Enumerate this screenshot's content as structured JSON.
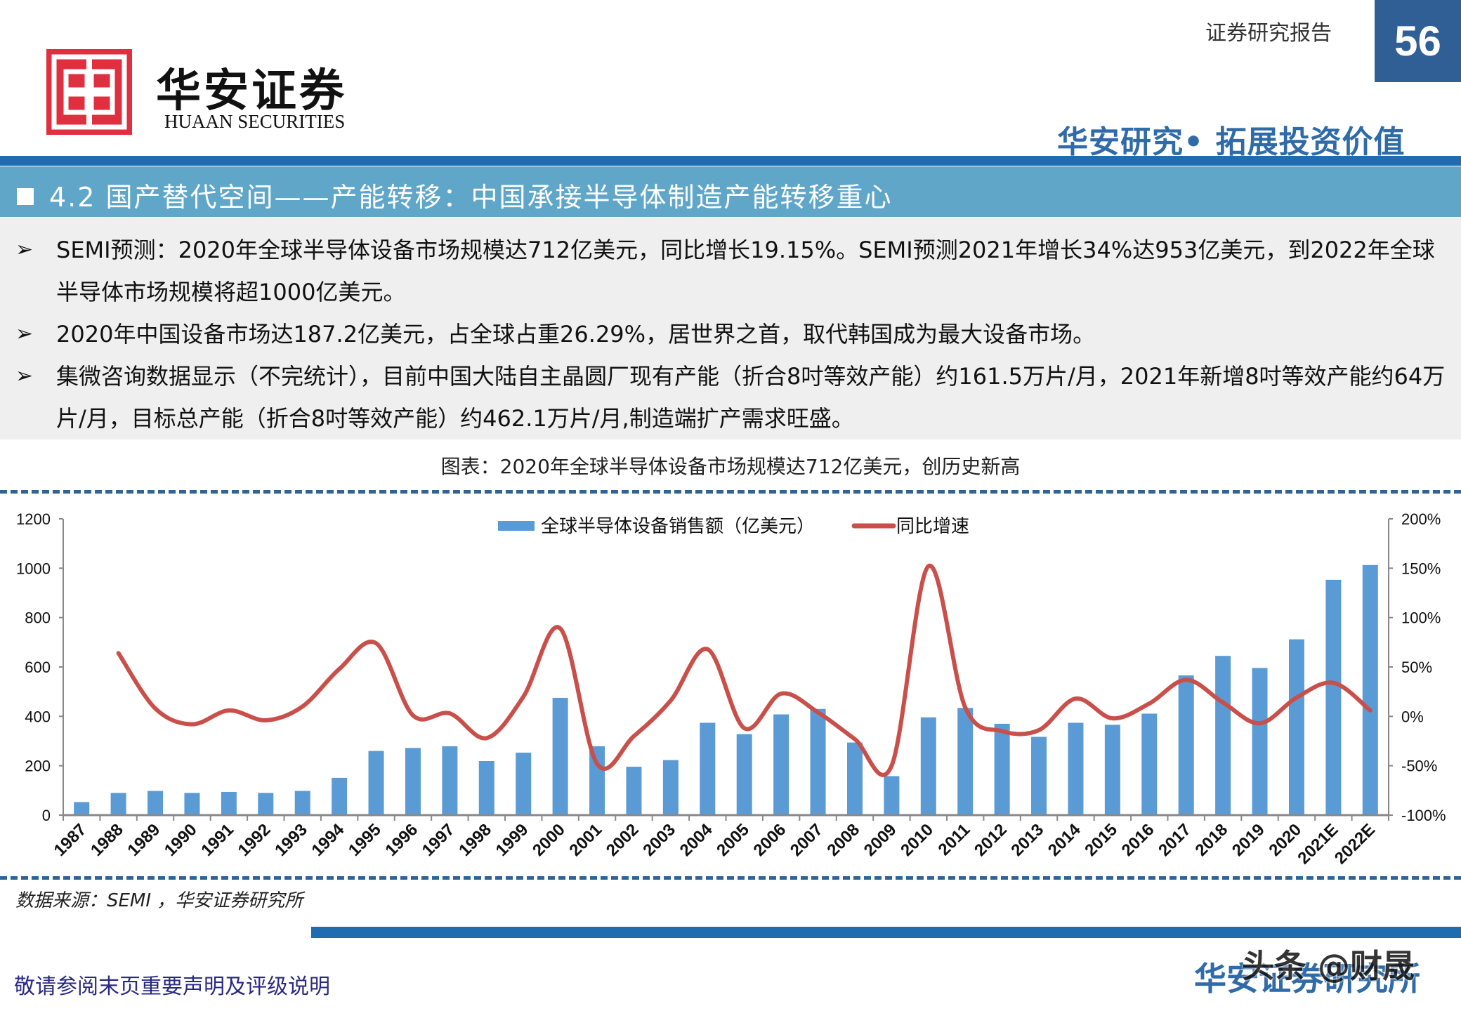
{
  "header": {
    "logo_cn": "华安证券",
    "logo_en": "HUAAN SECURITIES",
    "report_type": "证券研究报告",
    "page_number": "56",
    "slogan": "华安研究• 拓展投资价值"
  },
  "section": {
    "title": "4.2 国产替代空间——产能转移：中国承接半导体制造产能转移重心"
  },
  "bullets": [
    {
      "text": "SEMI预测：2020年全球半导体设备市场规模达712亿美元，同比增长19.15%。SEMI预测2021年增长34%达953亿美元，到2022年全球半导体市场规模将超1000亿美元。"
    },
    {
      "text": "2020年中国设备市场达187.2亿美元，占全球占重26.29%，居世界之首，取代韩国成为最大设备市场。"
    },
    {
      "text": "集微咨询数据显示（不完统计），目前中国大陆自主晶圆厂现有产能（折合8吋等效产能）约161.5万片/月，2021年新增8吋等效产能约64万片/月，目标总产能（折合8吋等效产能）约462.1万片/月,制造端扩产需求旺盛。"
    }
  ],
  "bullet_icon": "arrow-bullet-icon",
  "chart_caption": "图表：2020年全球半导体设备市场规模达712亿美元，创历史新高",
  "source": "数据来源：SEMI ，华安证券研究所",
  "footer": {
    "disclaimer": "敬请参阅末页重要声明及评级说明",
    "brand": "华安证券研究所",
    "watermark": "头条 @财晟"
  },
  "colors": {
    "bar": "#5b9bd5",
    "line": "#c9504a",
    "brand_blue": "#1f6db0",
    "section_bar": "#5fa6c9",
    "logo_red": "#e0303f"
  },
  "chart_data": {
    "type": "bar",
    "title": "2020年全球半导体设备市场规模达712亿美元，创历史新高",
    "categories": [
      "1987",
      "1988",
      "1989",
      "1990",
      "1991",
      "1992",
      "1993",
      "1994",
      "1995",
      "1996",
      "1997",
      "1998",
      "1999",
      "2000",
      "2001",
      "2002",
      "2003",
      "2004",
      "2005",
      "2006",
      "2007",
      "2008",
      "2009",
      "2010",
      "2011",
      "2012",
      "2013",
      "2014",
      "2015",
      "2016",
      "2017",
      "2018",
      "2019",
      "2020",
      "2021E",
      "2022E"
    ],
    "series": [
      {
        "name": "全球半导体设备销售额（亿美元）",
        "type": "bar",
        "axis": "left",
        "values": [
          53,
          90,
          98,
          90,
          94,
          90,
          98,
          151,
          260,
          272,
          279,
          219,
          253,
          475,
          279,
          196,
          223,
          374,
          328,
          408,
          430,
          294,
          158,
          396,
          434,
          370,
          317,
          374,
          366,
          411,
          566,
          645,
          596,
          712,
          953,
          1013
        ]
      },
      {
        "name": "同比增速",
        "type": "line",
        "axis": "right",
        "values": [
          null,
          64,
          8,
          -8,
          6,
          -4,
          10,
          48,
          74,
          1,
          3,
          -22,
          20,
          89,
          -48,
          -20,
          16,
          68,
          -12,
          23,
          4,
          -23,
          -50,
          152,
          9,
          -15,
          -14,
          18,
          -2,
          13,
          37,
          14,
          -7,
          19,
          34,
          6
        ]
      }
    ],
    "xlabel": "",
    "ylabel": "",
    "ylim": [
      0,
      1200
    ],
    "yticks": [
      "0",
      "200",
      "400",
      "600",
      "800",
      "1000",
      "1200"
    ],
    "y2lim": [
      -100,
      200
    ],
    "y2ticks": [
      "-100%",
      "-50%",
      "0%",
      "50%",
      "100%",
      "150%",
      "200%"
    ],
    "legend_position": "top",
    "grid": false
  }
}
